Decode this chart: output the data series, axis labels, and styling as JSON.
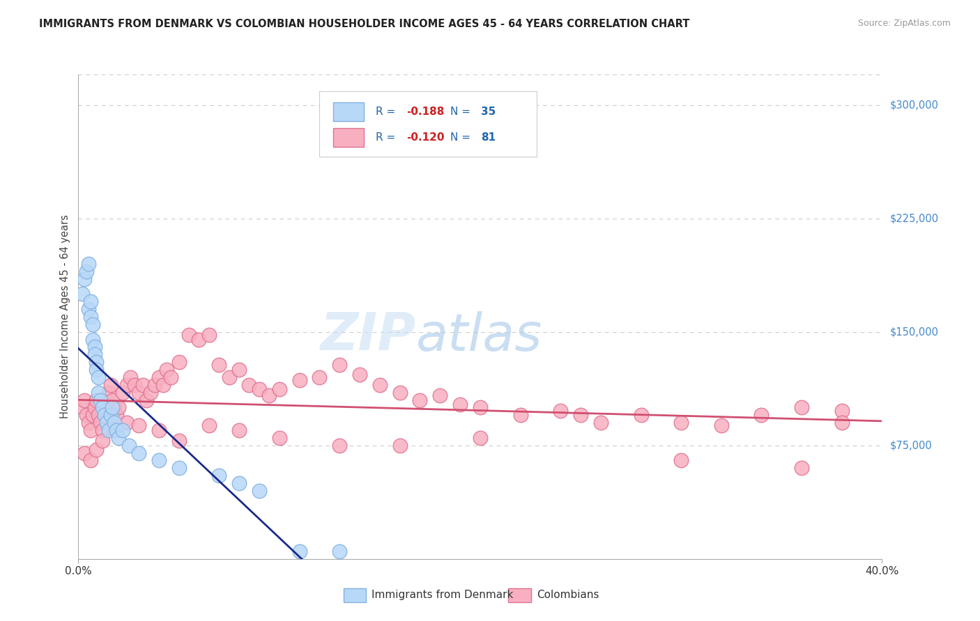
{
  "title": "IMMIGRANTS FROM DENMARK VS COLOMBIAN HOUSEHOLDER INCOME AGES 45 - 64 YEARS CORRELATION CHART",
  "source": "Source: ZipAtlas.com",
  "ylabel": "Householder Income Ages 45 - 64 years",
  "xlim": [
    0.0,
    0.4
  ],
  "ylim": [
    0,
    320000
  ],
  "yticks": [
    75000,
    150000,
    225000,
    300000
  ],
  "ytick_labels": [
    "$75,000",
    "$150,000",
    "$225,000",
    "$300,000"
  ],
  "xtick_labels": [
    "0.0%",
    "40.0%"
  ],
  "denmark_R": "-0.188",
  "denmark_N": "35",
  "colombia_R": "-0.120",
  "colombia_N": "81",
  "bottom_legend_labels": [
    "Immigrants from Denmark",
    "Colombians"
  ],
  "denmark_fill": "#b8d8f8",
  "denmark_edge": "#80b0e0",
  "colombia_fill": "#f8b0c0",
  "colombia_edge": "#e07090",
  "denmark_line_color": "#1a2a8a",
  "colombia_line_color": "#d05070",
  "background_color": "#ffffff",
  "grid_color": "#cccccc",
  "watermark_zip": "ZIP",
  "watermark_atlas": "atlas",
  "title_color": "#222222",
  "ytick_color": "#4488cc",
  "denmark_x": [
    0.002,
    0.003,
    0.004,
    0.005,
    0.005,
    0.006,
    0.006,
    0.007,
    0.007,
    0.008,
    0.008,
    0.009,
    0.009,
    0.01,
    0.01,
    0.011,
    0.012,
    0.013,
    0.014,
    0.015,
    0.016,
    0.017,
    0.018,
    0.019,
    0.02,
    0.022,
    0.025,
    0.03,
    0.04,
    0.05,
    0.07,
    0.08,
    0.09,
    0.11,
    0.13
  ],
  "denmark_y": [
    175000,
    185000,
    190000,
    195000,
    165000,
    170000,
    160000,
    155000,
    145000,
    140000,
    135000,
    130000,
    125000,
    120000,
    110000,
    105000,
    100000,
    95000,
    90000,
    85000,
    95000,
    100000,
    90000,
    85000,
    80000,
    85000,
    75000,
    70000,
    65000,
    60000,
    55000,
    50000,
    45000,
    5000,
    5000
  ],
  "colombia_x": [
    0.002,
    0.003,
    0.004,
    0.005,
    0.006,
    0.007,
    0.008,
    0.009,
    0.01,
    0.011,
    0.012,
    0.013,
    0.014,
    0.015,
    0.016,
    0.017,
    0.018,
    0.019,
    0.02,
    0.022,
    0.024,
    0.026,
    0.028,
    0.03,
    0.032,
    0.034,
    0.036,
    0.038,
    0.04,
    0.042,
    0.044,
    0.046,
    0.05,
    0.055,
    0.06,
    0.065,
    0.07,
    0.075,
    0.08,
    0.085,
    0.09,
    0.095,
    0.1,
    0.11,
    0.12,
    0.13,
    0.14,
    0.15,
    0.16,
    0.17,
    0.18,
    0.19,
    0.2,
    0.22,
    0.24,
    0.26,
    0.28,
    0.3,
    0.32,
    0.34,
    0.36,
    0.38,
    0.003,
    0.006,
    0.009,
    0.012,
    0.018,
    0.024,
    0.03,
    0.04,
    0.05,
    0.065,
    0.08,
    0.1,
    0.13,
    0.16,
    0.2,
    0.25,
    0.3,
    0.36,
    0.38
  ],
  "colombia_y": [
    100000,
    105000,
    95000,
    90000,
    85000,
    95000,
    100000,
    105000,
    95000,
    90000,
    85000,
    95000,
    100000,
    110000,
    115000,
    105000,
    100000,
    95000,
    100000,
    110000,
    115000,
    120000,
    115000,
    110000,
    115000,
    105000,
    110000,
    115000,
    120000,
    115000,
    125000,
    120000,
    130000,
    148000,
    145000,
    148000,
    128000,
    120000,
    125000,
    115000,
    112000,
    108000,
    112000,
    118000,
    120000,
    128000,
    122000,
    115000,
    110000,
    105000,
    108000,
    102000,
    100000,
    95000,
    98000,
    90000,
    95000,
    90000,
    88000,
    95000,
    100000,
    98000,
    70000,
    65000,
    72000,
    78000,
    85000,
    90000,
    88000,
    85000,
    78000,
    88000,
    85000,
    80000,
    75000,
    75000,
    80000,
    95000,
    65000,
    60000,
    90000
  ]
}
